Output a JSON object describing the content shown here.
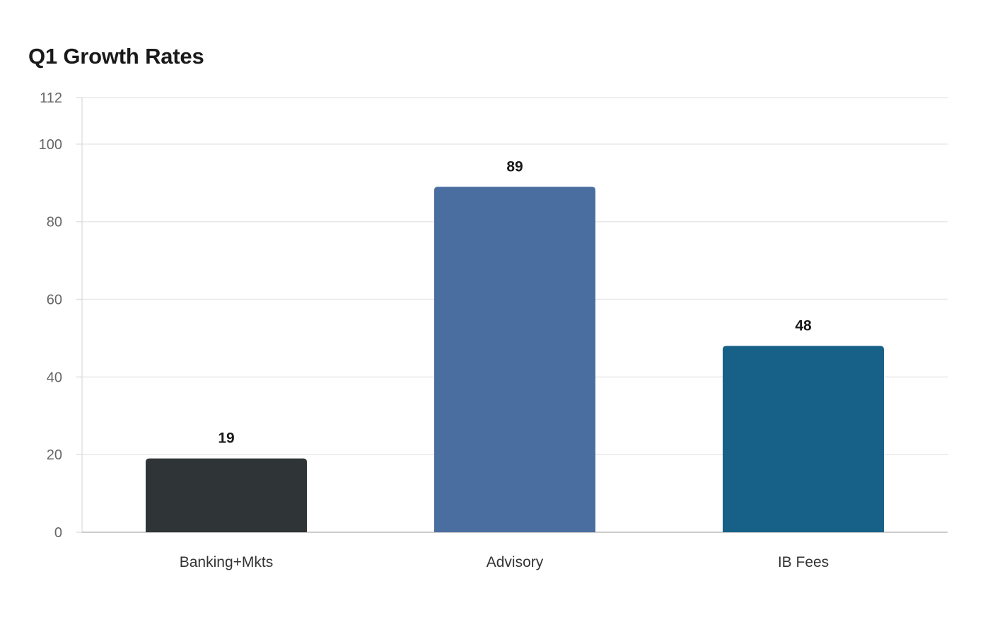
{
  "chart_data": {
    "type": "bar",
    "title": "Q1 Growth Rates",
    "xlabel": "",
    "ylabel": "",
    "categories": [
      "Banking+Mkts",
      "Advisory",
      "IB Fees"
    ],
    "values": [
      19,
      89,
      48
    ],
    "data_labels": [
      "19",
      "89",
      "48"
    ],
    "colors": [
      "#2f3437",
      "#4a6ea0",
      "#176087"
    ],
    "ylim": [
      0,
      112
    ],
    "yticks": [
      0,
      20,
      40,
      60,
      80,
      100,
      112
    ],
    "grid": true,
    "legend": "none"
  }
}
